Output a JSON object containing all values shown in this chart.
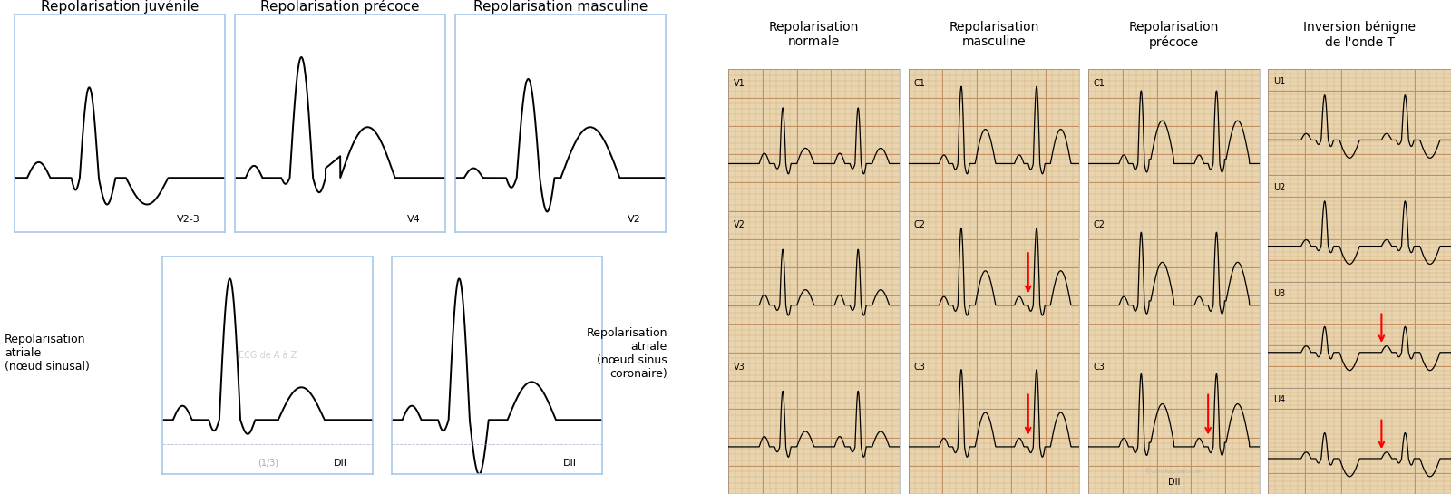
{
  "bg_color": "#ffffff",
  "ecg_paper_color": "#e8d5b0",
  "ecg_paper_grid_minor": "#d4a574",
  "ecg_paper_grid_major": "#c49060",
  "left_top_titles": [
    "Repolarisation juvénile",
    "Repolarisation précoce",
    "Repolarisation masculine"
  ],
  "left_top_labels": [
    "V2-3",
    "V4",
    "V2"
  ],
  "left_bottom_labels": [
    "DII",
    "DII"
  ],
  "text_left_bottom_left": "Repolarisation\natriale\n(nœud sinusal)",
  "text_left_bottom_right": "Repolarisation\natriale\n(nœud sinus\ncoronaire)",
  "watermark": "ECG de A à Z",
  "watermark2": "(1/3)",
  "right_titles": [
    "Repolarisation\nnormale",
    "Repolarisation\nmasculine",
    "Repolarisation\nprécoce",
    "Inversion bénigne\nde l'onde T"
  ],
  "right_leads_1": [
    "V1",
    "V2",
    "V3"
  ],
  "right_leads_2": [
    "C1",
    "C2",
    "C3"
  ],
  "right_leads_3": [
    "C1",
    "C2",
    "C3"
  ],
  "right_leads_4": [
    "U1",
    "U2",
    "U3",
    "U4"
  ],
  "right_extra_label_3": "DII",
  "right_watermark": "©cardiogram.com",
  "border_color": "#a8c8e8",
  "title_fontsize": 11,
  "label_fontsize": 9
}
